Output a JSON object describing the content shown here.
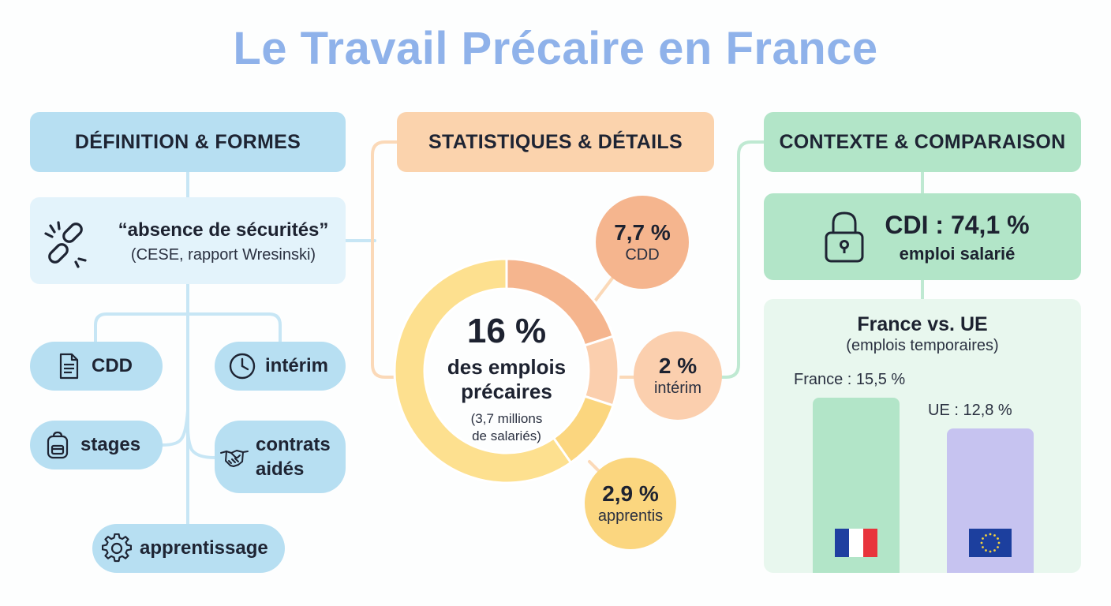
{
  "title": "Le Travail Précaire en France",
  "colors": {
    "title": "#8fb2ea",
    "definition": "#b7dff2",
    "statistics": "#fbd3ad",
    "context": "#b2e5c8",
    "cdd": "#f5b58e",
    "interim": "#fbcfae",
    "apprentis": "#fbd67f",
    "france_bar": "#b2e5c8",
    "ue_bar": "#c6c3f0"
  },
  "definition": {
    "header": "DÉFINITION & FORMES",
    "icon": "broken-link-icon",
    "quote": "“absence de sécurités”",
    "source": "(CESE, rapport Wresinski)",
    "forms": [
      {
        "label": "CDD",
        "icon": "document-icon"
      },
      {
        "label": "intérim",
        "icon": "clock-icon"
      },
      {
        "label": "stages",
        "icon": "backpack-icon"
      },
      {
        "label_line1": "contrats",
        "label_line2": "aidés",
        "icon": "handshake-icon"
      },
      {
        "label": "apprentissage",
        "icon": "gear-icon"
      }
    ]
  },
  "statistics": {
    "header": "STATISTIQUES & DÉTAILS",
    "total": {
      "value": "16 %",
      "label_line1": "des emplois",
      "label_line2": "précaires",
      "sub_line1": "(3,7 millions",
      "sub_line2": "de salariés)"
    },
    "breakdown": [
      {
        "value": "7,7 %",
        "label": "CDD"
      },
      {
        "value": "2 %",
        "label": "intérim"
      },
      {
        "value": "2,9 %",
        "label": "apprentis"
      }
    ]
  },
  "context": {
    "header": "CONTEXTE & COMPARAISON",
    "cdi": {
      "icon": "lock-icon",
      "value": "CDI : 74,1 %",
      "label": "emploi salarié"
    },
    "comparison": {
      "title": "France vs. UE",
      "subtitle": "(emplois temporaires)",
      "bars": [
        {
          "label": "France : 15,5 %",
          "value": 15.5,
          "flag": "france-flag-icon"
        },
        {
          "label": "UE : 12,8 %",
          "value": 12.8,
          "flag": "eu-flag-icon"
        }
      ]
    }
  }
}
